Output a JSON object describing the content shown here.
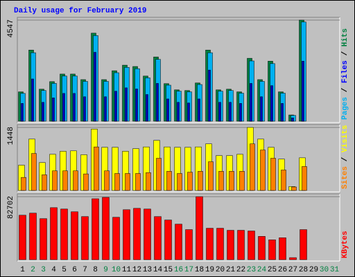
{
  "chart_data": [
    {
      "type": "bar",
      "title": "Daily usage for February 2019",
      "ylim": [
        0,
        4547
      ],
      "yticks": [
        4547
      ],
      "legend_separator": " / ",
      "series": [
        {
          "name": "Hits",
          "color": "#008040",
          "label_color": "#008040",
          "values": [
            1320,
            3200,
            1440,
            1780,
            2120,
            2120,
            1870,
            3960,
            1870,
            2270,
            2520,
            2460,
            2030,
            2890,
            1690,
            1410,
            1380,
            1720,
            3200,
            1410,
            1440,
            1320,
            2830,
            1870,
            2700,
            1320,
            280,
            4547,
            null,
            null,
            null
          ]
        },
        {
          "name": "Files",
          "color": "#00b0f0",
          "label_color": "#0000ff",
          "values": [
            1250,
            3080,
            1380,
            1700,
            2030,
            2030,
            1790,
            3850,
            1790,
            2180,
            2420,
            2360,
            1950,
            2780,
            1620,
            1350,
            1320,
            1650,
            3080,
            1350,
            1380,
            1260,
            2710,
            1790,
            2590,
            1260,
            260,
            4460,
            null,
            null,
            null
          ]
        },
        {
          "name": "Pages",
          "color": "#0000c0",
          "label_color": "#00b0f0",
          "values": [
            800,
            1900,
            850,
            1050,
            1250,
            1250,
            1100,
            3100,
            1100,
            1350,
            1500,
            1450,
            1200,
            1700,
            1000,
            850,
            820,
            1000,
            2300,
            850,
            850,
            800,
            1700,
            1100,
            1600,
            800,
            150,
            2700,
            null,
            null,
            null
          ]
        }
      ]
    },
    {
      "type": "bar",
      "ylim": [
        0,
        1448
      ],
      "yticks": [
        1448
      ],
      "legend_separator": " / ",
      "series": [
        {
          "name": "Visits",
          "color": "#ffff00",
          "label_color": "#ffff00",
          "values": [
            580,
            1180,
            640,
            830,
            900,
            910,
            820,
            1410,
            990,
            990,
            900,
            960,
            1000,
            1150,
            1000,
            990,
            990,
            1000,
            1070,
            800,
            800,
            830,
            1448,
            1180,
            990,
            720,
            90,
            750,
            null,
            null,
            null
          ]
        },
        {
          "name": "Sites",
          "color": "#ff8000",
          "label_color": "#ff8000",
          "values": [
            300,
            850,
            360,
            450,
            450,
            450,
            380,
            1000,
            450,
            390,
            390,
            390,
            410,
            740,
            440,
            390,
            420,
            440,
            660,
            440,
            440,
            440,
            1070,
            930,
            740,
            470,
            80,
            550,
            null,
            null,
            null
          ]
        }
      ]
    },
    {
      "type": "bar",
      "ylim": [
        0,
        82702
      ],
      "yticks": [
        82702
      ],
      "legend_separator": " / ",
      "categories": [
        "1",
        "2",
        "3",
        "4",
        "5",
        "6",
        "7",
        "8",
        "9",
        "10",
        "11",
        "12",
        "13",
        "14",
        "15",
        "16",
        "17",
        "18",
        "19",
        "20",
        "21",
        "22",
        "23",
        "24",
        "25",
        "26",
        "27",
        "28",
        "29",
        "30",
        "31"
      ],
      "category_colors": [
        "#000000",
        "#008040",
        "#008040",
        "#000000",
        "#000000",
        "#000000",
        "#000000",
        "#000000",
        "#008040",
        "#008040",
        "#000000",
        "#000000",
        "#000000",
        "#000000",
        "#000000",
        "#008040",
        "#008040",
        "#000000",
        "#000000",
        "#000000",
        "#000000",
        "#000000",
        "#008040",
        "#008040",
        "#000000",
        "#000000",
        "#000000",
        "#000000",
        "#000000",
        "#008040",
        "#008040"
      ],
      "series": [
        {
          "name": "KBytes",
          "color": "#ff0000",
          "label_color": "#ff0000",
          "values": [
            58400,
            61100,
            53900,
            68300,
            66500,
            62900,
            56600,
            80000,
            81800,
            55700,
            65600,
            67400,
            66500,
            56600,
            52100,
            46700,
            39500,
            82702,
            41300,
            41300,
            38600,
            38600,
            37700,
            30600,
            26100,
            28800,
            2700,
            39500,
            null,
            null,
            null
          ]
        }
      ]
    }
  ]
}
